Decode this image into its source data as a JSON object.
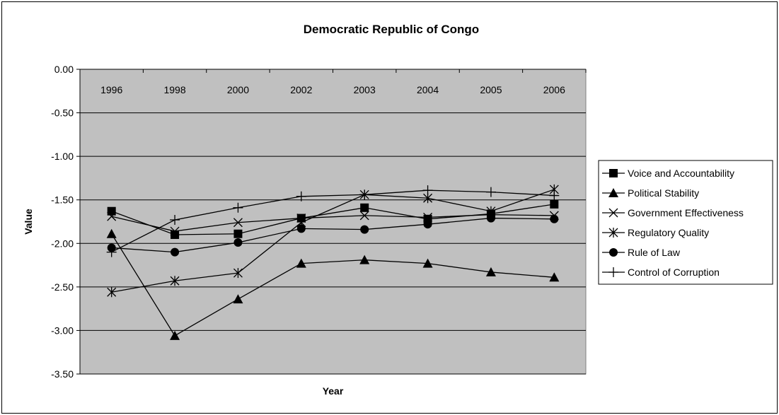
{
  "chart_data": {
    "type": "line",
    "title": "Democratic Republic of Congo",
    "xlabel": "Year",
    "ylabel": "Value",
    "categories": [
      "1996",
      "1998",
      "2000",
      "2002",
      "2003",
      "2004",
      "2005",
      "2006"
    ],
    "ylim": [
      -3.5,
      0
    ],
    "yticks": [
      "0.00",
      "-0.50",
      "-1.00",
      "-1.50",
      "-2.00",
      "-2.50",
      "-3.00",
      "-3.50"
    ],
    "ytick_values": [
      0,
      -0.5,
      -1.0,
      -1.5,
      -2.0,
      -2.5,
      -3.0,
      -3.5
    ],
    "grid": "horizontal",
    "legend_position": "right",
    "plot_background": "#c0c0c0",
    "line_color": "#000000",
    "series": [
      {
        "name": "Voice and Accountability",
        "marker": "square",
        "values": [
          -1.63,
          -1.9,
          -1.89,
          -1.71,
          -1.59,
          -1.72,
          -1.66,
          -1.55
        ]
      },
      {
        "name": "Political Stability",
        "marker": "triangle",
        "values": [
          -1.89,
          -3.06,
          -2.64,
          -2.23,
          -2.19,
          -2.23,
          -2.33,
          -2.39
        ]
      },
      {
        "name": "Government Effectiveness",
        "marker": "x",
        "values": [
          -1.69,
          -1.86,
          -1.76,
          -1.71,
          -1.68,
          -1.7,
          -1.67,
          -1.68
        ]
      },
      {
        "name": "Regulatory Quality",
        "marker": "star",
        "values": [
          -2.56,
          -2.43,
          -2.34,
          -1.76,
          -1.44,
          -1.48,
          -1.63,
          -1.38
        ]
      },
      {
        "name": "Rule of Law",
        "marker": "circle",
        "values": [
          -2.05,
          -2.1,
          -1.99,
          -1.83,
          -1.84,
          -1.78,
          -1.71,
          -1.72
        ]
      },
      {
        "name": "Control of Corruption",
        "marker": "plus",
        "values": [
          -2.1,
          -1.73,
          -1.59,
          -1.46,
          -1.44,
          -1.39,
          -1.41,
          -1.45
        ]
      }
    ]
  }
}
